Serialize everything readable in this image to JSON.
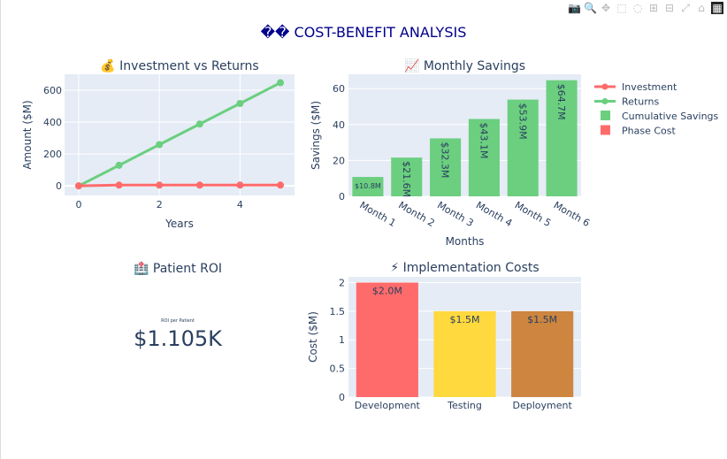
{
  "title": "�� COST-BENEFIT ANALYSIS",
  "title_color": "#00008b",
  "modebar": [
    "camera-icon",
    "zoom-icon",
    "pan-icon",
    "box-select-icon",
    "lasso-icon",
    "zoom-in-icon",
    "zoom-out-icon",
    "autoscale-icon",
    "home-icon",
    "plotly-logo-icon"
  ],
  "legend": {
    "placement": "top-right",
    "items": [
      {
        "name": "Investment",
        "type": "line",
        "color": "#ff6b6b"
      },
      {
        "name": "Returns",
        "type": "line",
        "color": "#6bcf7f"
      },
      {
        "name": "Cumulative Savings",
        "type": "bar",
        "color": "#6bcf7f"
      },
      {
        "name": "Phase Cost",
        "type": "bar",
        "color": "#ff6b6b"
      }
    ]
  },
  "chart_data": [
    {
      "type": "line",
      "title": "💰 Investment vs Returns",
      "xlabel": "Years",
      "ylabel": "Amount ($M)",
      "x": [
        0,
        1,
        2,
        3,
        4,
        5
      ],
      "xticks": [
        0,
        2,
        4
      ],
      "yticks": [
        0,
        200,
        400,
        600
      ],
      "xlim": [
        -0.35,
        5.35
      ],
      "ylim": [
        -60,
        700
      ],
      "grid": true,
      "series": [
        {
          "name": "Investment",
          "color": "#ff6b6b",
          "values": [
            0,
            5,
            5,
            5,
            5,
            5
          ]
        },
        {
          "name": "Returns",
          "color": "#6bcf7f",
          "values": [
            0,
            129,
            259,
            388,
            517,
            647
          ]
        }
      ]
    },
    {
      "type": "bar",
      "title": "📈 Monthly Savings",
      "xlabel": "Months",
      "ylabel": "Savings ($M)",
      "categories": [
        "Month 1",
        "Month 2",
        "Month 3",
        "Month 4",
        "Month 5",
        "Month 6"
      ],
      "values": [
        10.8,
        21.6,
        32.3,
        43.1,
        53.9,
        64.7
      ],
      "labels": [
        "$10.8M",
        "$21.6M",
        "$32.3M",
        "$43.1M",
        "$53.9M",
        "$64.7M"
      ],
      "yticks": [
        0,
        20,
        40,
        60
      ],
      "ylim": [
        0,
        68
      ],
      "color": "#6bcf7f",
      "grid": true
    },
    {
      "type": "indicator",
      "title": "🏥 Patient ROI",
      "label": "ROI per Patient",
      "value": "$1.105K"
    },
    {
      "type": "bar",
      "title": "⚡ Implementation Costs",
      "ylabel": "Cost ($M)",
      "categories": [
        "Development",
        "Testing",
        "Deployment"
      ],
      "values": [
        2.0,
        1.5,
        1.5
      ],
      "labels": [
        "$2.0M",
        "$1.5M",
        "$1.5M"
      ],
      "colors": [
        "#ff6b6b",
        "#ffd93d",
        "#cd853f"
      ],
      "yticks": [
        0,
        0.5,
        1,
        1.5,
        2
      ],
      "ytick_labels": [
        "0",
        "0.5",
        "1",
        "1.5",
        "2"
      ],
      "ylim": [
        0,
        2.1
      ],
      "grid": true
    }
  ]
}
